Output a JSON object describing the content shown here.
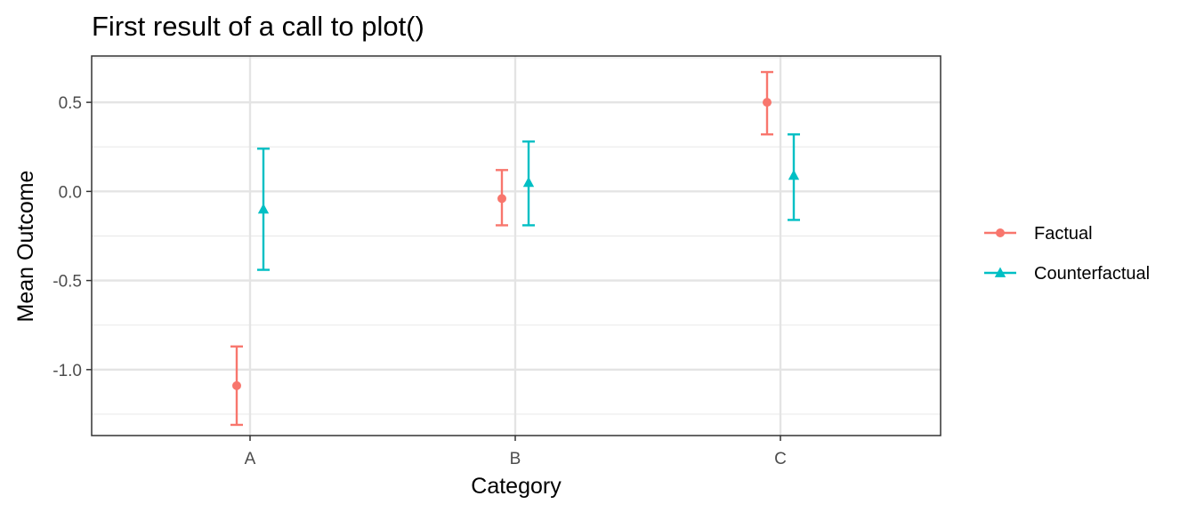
{
  "chart_data": {
    "type": "scatter",
    "title": "First result of a call to plot()",
    "xlabel": "Category",
    "ylabel": "Mean Outcome",
    "categories": [
      "A",
      "B",
      "C"
    ],
    "ylim": [
      -1.37,
      0.76
    ],
    "y_ticks": [
      0.5,
      0.0,
      -0.5,
      -1.0
    ],
    "y_tick_labels": [
      "0.5",
      "0.0",
      "-0.5",
      "-1.0"
    ],
    "grid": true,
    "legend_position": "right",
    "series": [
      {
        "name": "Factual",
        "color": "#F8766D",
        "marker": "circle",
        "values": [
          -1.09,
          -0.04,
          0.5
        ],
        "lower": [
          -1.31,
          -0.19,
          0.32
        ],
        "upper": [
          -0.87,
          0.12,
          0.67
        ]
      },
      {
        "name": "Counterfactual",
        "color": "#00BFC4",
        "marker": "triangle",
        "values": [
          -0.1,
          0.05,
          0.09
        ],
        "lower": [
          -0.44,
          -0.19,
          -0.16
        ],
        "upper": [
          0.24,
          0.28,
          0.32
        ]
      }
    ]
  }
}
